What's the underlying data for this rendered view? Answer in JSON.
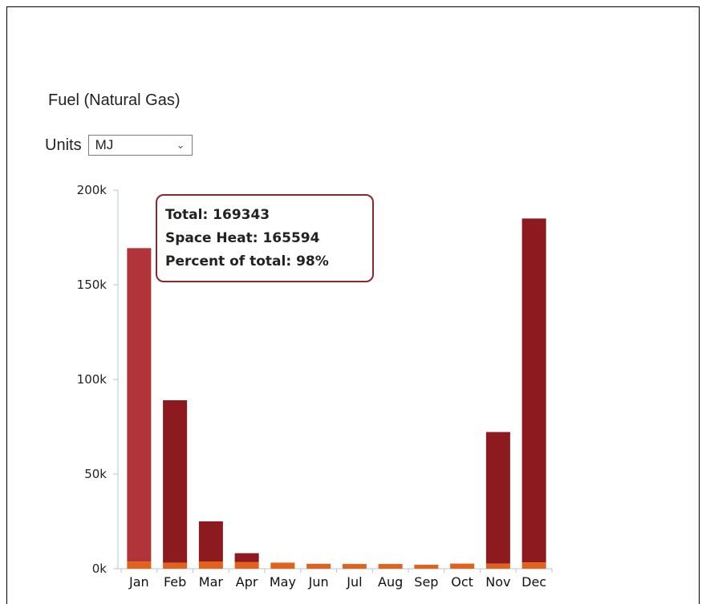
{
  "title": "Fuel (Natural Gas)",
  "units": {
    "label": "Units",
    "selected": "MJ"
  },
  "tooltip": {
    "total": "Total: 169343",
    "space_heat": "Space Heat: 165594",
    "percent": "Percent of total: 98%"
  },
  "colors": {
    "space_heat": "#8c1a1f",
    "space_heat_highlight": "#b0343a",
    "other": "#e0621c",
    "axis": "#b8c6d0"
  },
  "chart_data": {
    "type": "bar",
    "stacked": true,
    "categories": [
      "Jan",
      "Feb",
      "Mar",
      "Apr",
      "May",
      "Jun",
      "Jul",
      "Aug",
      "Sep",
      "Oct",
      "Nov",
      "Dec"
    ],
    "series": [
      {
        "key": "other",
        "values": [
          3749,
          3200,
          3800,
          3600,
          3200,
          2600,
          2500,
          2500,
          2100,
          2700,
          2700,
          3300
        ]
      },
      {
        "key": "space_heat",
        "values": [
          165594,
          85800,
          21200,
          4600,
          0,
          0,
          0,
          0,
          0,
          0,
          69500,
          181700
        ]
      }
    ],
    "totals": [
      169343,
      89000,
      25000,
      8200,
      3200,
      2600,
      2500,
      2500,
      2100,
      2700,
      72200,
      185000
    ],
    "highlighted_index": 0,
    "ylim": [
      0,
      200000
    ],
    "yticks": [
      "0k",
      "50k",
      "100k",
      "150k",
      "200k"
    ],
    "ytick_values": [
      0,
      50000,
      100000,
      150000,
      200000
    ]
  }
}
